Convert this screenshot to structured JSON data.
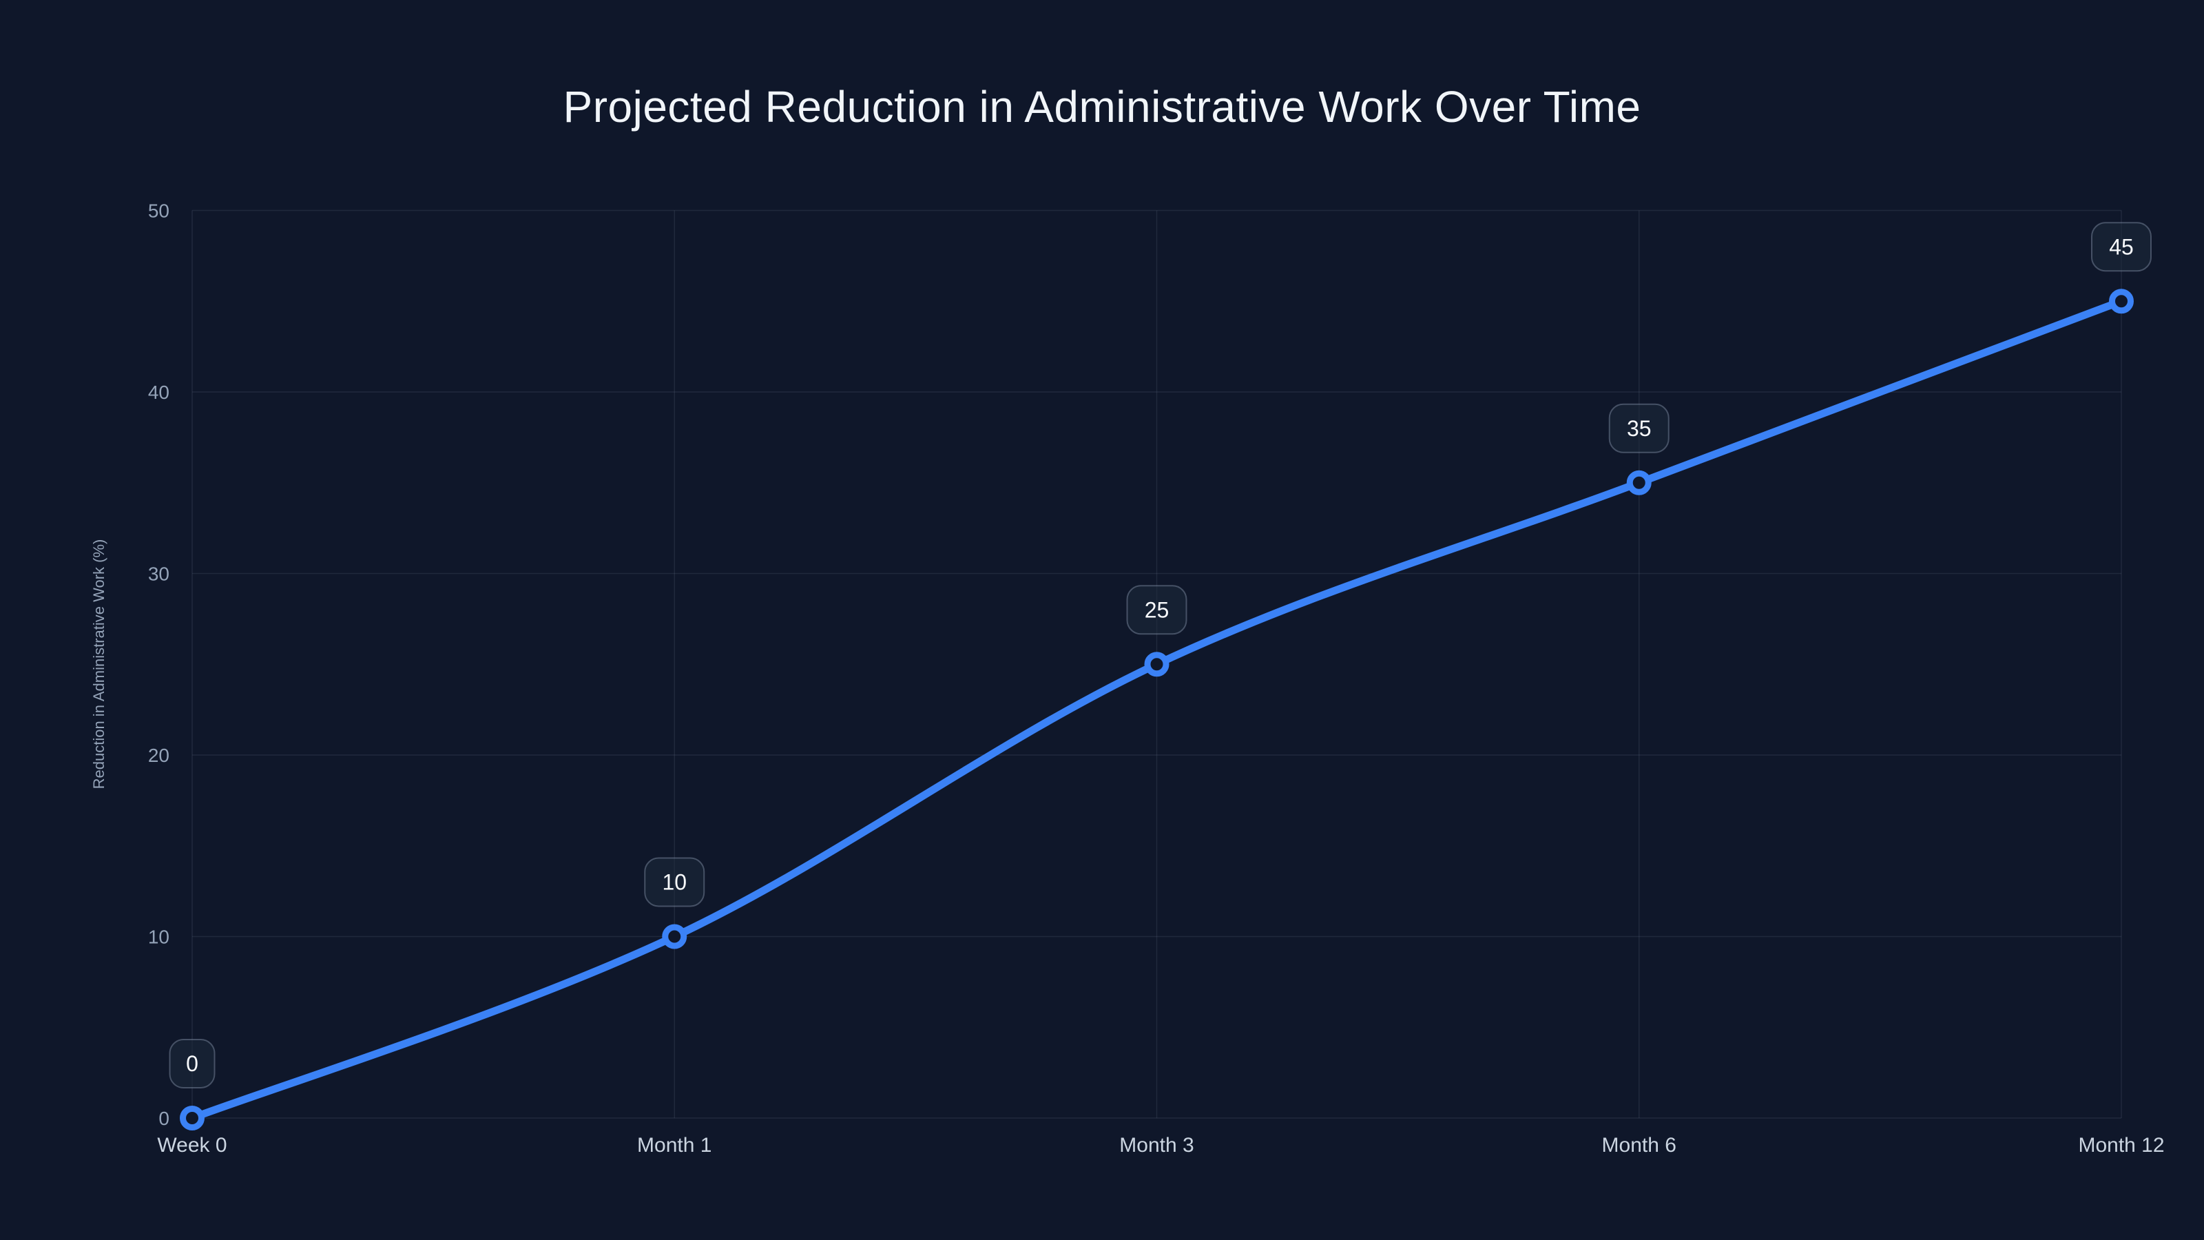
{
  "chart_data": {
    "type": "line",
    "title": "Projected Reduction in Administrative Work Over Time",
    "xlabel": "",
    "ylabel": "Reduction in Administrative Work (%)",
    "categories": [
      "Week 0",
      "Month 1",
      "Month 3",
      "Month 6",
      "Month 12"
    ],
    "values": [
      0,
      10,
      25,
      35,
      45
    ],
    "data_labels": [
      "0",
      "10",
      "25",
      "35",
      "45"
    ],
    "ylim": [
      0,
      50
    ],
    "yticks": [
      0,
      10,
      20,
      30,
      40,
      50
    ],
    "grid": "on",
    "legend": "none",
    "smooth": true,
    "colors": {
      "background": "#0f172a",
      "line": "#3b82f6",
      "point_fill": "#0f172a",
      "grid": "rgba(148,163,184,0.13)",
      "badge_fill": "rgba(30,41,59,0.55)",
      "badge_border": "rgba(148,163,184,0.4)",
      "title_text": "#f1f5f9",
      "axis_text": "#94a3b8",
      "category_text": "#cbd5e1",
      "point_label_text": "#f8fafc"
    }
  }
}
